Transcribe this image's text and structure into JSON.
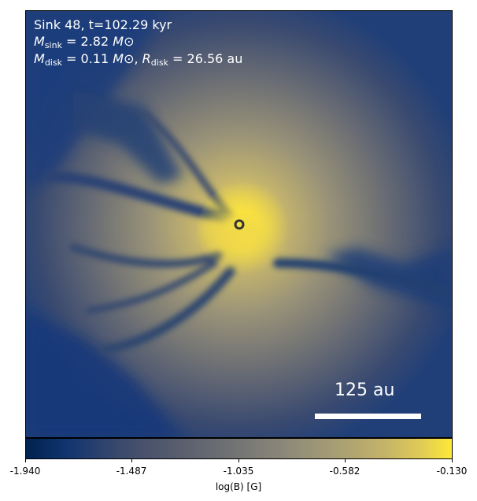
{
  "annotation": {
    "line1": "Sink 48, t=102.29 kyr",
    "msink_sym": "M",
    "msink_sub": "sink",
    "msink_value": "= 2.82",
    "mdisk_sym": "M",
    "mdisk_sub": "disk",
    "mdisk_value": "= 0.11",
    "rdisk_sym": "R",
    "rdisk_sub": "disk",
    "rdisk_value": "= 26.56 au",
    "solar_symbol": "M⊙"
  },
  "scale_bar": {
    "label": "125 au"
  },
  "colorbar": {
    "label": "log(B) [G]",
    "ticks": [
      "-1.940",
      "-1.487",
      "-1.035",
      "-0.582",
      "-0.130"
    ],
    "colormap": "cividis"
  },
  "colors": {
    "sink_marker": "#333333",
    "text": "#ffffff"
  }
}
